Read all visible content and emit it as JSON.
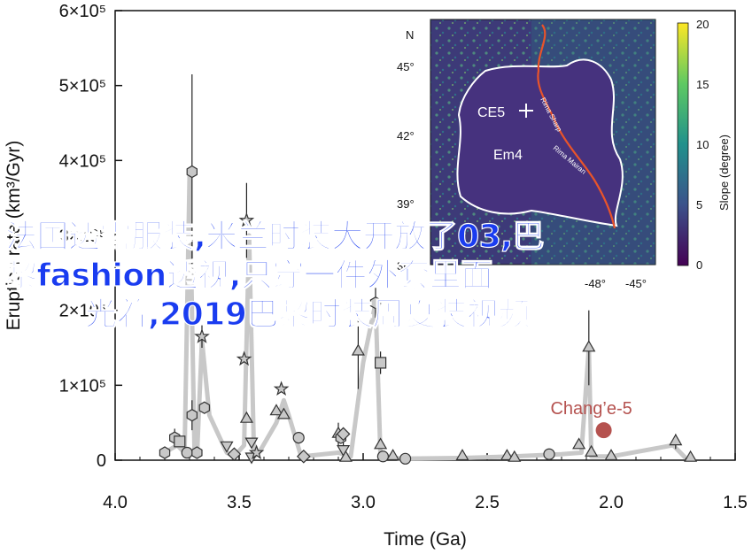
{
  "chart_data": {
    "type": "scatter",
    "xlabel": "Time (Ga)",
    "ylabel": "Eruption rate (km³/Gyr)",
    "xlim": [
      4.0,
      1.5
    ],
    "ylim": [
      0,
      600000
    ],
    "x_ticks": [
      "4.0",
      "3.5",
      "3.0",
      "2.5",
      "2.0",
      "1.5"
    ],
    "y_ticks": [
      "0",
      "1×10⁵",
      "2×10⁵",
      "3×10⁵",
      "4×10⁵",
      "5×10⁵",
      "6×10⁵"
    ],
    "y_tick_values": [
      0,
      100000,
      200000,
      300000,
      400000,
      500000,
      600000
    ],
    "x_tick_values": [
      4.0,
      3.5,
      3.0,
      2.5,
      2.0,
      1.5
    ],
    "line_color": "#c8c8c8",
    "marker_fill": "#c8c8c8",
    "marker_stroke": "#333333",
    "highlight_color": "#b5524f",
    "trend_line": [
      [
        3.8,
        10000
      ],
      [
        3.75,
        20000
      ],
      [
        3.72,
        10000
      ],
      [
        3.7,
        380000
      ],
      [
        3.68,
        10000
      ],
      [
        3.67,
        5000
      ],
      [
        3.65,
        160000
      ],
      [
        3.62,
        60000
      ],
      [
        3.55,
        10000
      ],
      [
        3.52,
        5000
      ],
      [
        3.48,
        20000
      ],
      [
        3.46,
        300000
      ],
      [
        3.44,
        5000
      ],
      [
        3.42,
        10000
      ],
      [
        3.35,
        50000
      ],
      [
        3.32,
        80000
      ],
      [
        3.3,
        60000
      ],
      [
        3.25,
        5000
      ],
      [
        3.1,
        10000
      ],
      [
        3.05,
        5000
      ],
      [
        3.0,
        130000
      ],
      [
        2.95,
        210000
      ],
      [
        2.93,
        5000
      ],
      [
        2.9,
        5000
      ],
      [
        2.85,
        2000
      ],
      [
        2.6,
        3000
      ],
      [
        2.4,
        5000
      ],
      [
        2.2,
        8000
      ],
      [
        2.12,
        10000
      ],
      [
        2.09,
        150000
      ],
      [
        2.08,
        5000
      ],
      [
        2.0,
        5000
      ],
      [
        1.75,
        20000
      ],
      [
        1.7,
        3000
      ]
    ],
    "points": [
      {
        "x": 3.8,
        "y": 10000,
        "marker": "hexagon"
      },
      {
        "x": 3.76,
        "y": 30000,
        "marker": "hexagon",
        "err": 12000
      },
      {
        "x": 3.74,
        "y": 25000,
        "marker": "square"
      },
      {
        "x": 3.71,
        "y": 10000,
        "marker": "circle"
      },
      {
        "x": 3.69,
        "y": 385000,
        "marker": "hexagon",
        "err": 130000
      },
      {
        "x": 3.69,
        "y": 60000,
        "marker": "hexagon",
        "err": 20000
      },
      {
        "x": 3.67,
        "y": 10000,
        "marker": "hexagon"
      },
      {
        "x": 3.65,
        "y": 165000,
        "marker": "star",
        "err": 15000
      },
      {
        "x": 3.64,
        "y": 70000,
        "marker": "hexagon"
      },
      {
        "x": 3.55,
        "y": 20000,
        "marker": "triangle-down"
      },
      {
        "x": 3.52,
        "y": 8000,
        "marker": "diamond"
      },
      {
        "x": 3.48,
        "y": 135000,
        "marker": "star"
      },
      {
        "x": 3.47,
        "y": 320000,
        "marker": "star",
        "err": 50000
      },
      {
        "x": 3.47,
        "y": 55000,
        "marker": "triangle-up"
      },
      {
        "x": 3.45,
        "y": 25000,
        "marker": "triangle-down"
      },
      {
        "x": 3.45,
        "y": 5000,
        "marker": "triangle-down"
      },
      {
        "x": 3.43,
        "y": 10000,
        "marker": "star"
      },
      {
        "x": 3.35,
        "y": 65000,
        "marker": "triangle-up"
      },
      {
        "x": 3.33,
        "y": 95000,
        "marker": "star"
      },
      {
        "x": 3.32,
        "y": 60000,
        "marker": "triangle-up"
      },
      {
        "x": 3.26,
        "y": 30000,
        "marker": "circle"
      },
      {
        "x": 3.24,
        "y": 5000,
        "marker": "diamond"
      },
      {
        "x": 3.1,
        "y": 35000,
        "marker": "triangle-up",
        "err": 15000
      },
      {
        "x": 3.09,
        "y": 30000,
        "marker": "hexagon"
      },
      {
        "x": 3.08,
        "y": 35000,
        "marker": "diamond"
      },
      {
        "x": 3.08,
        "y": 15000,
        "marker": "triangle-down",
        "err": 12000
      },
      {
        "x": 3.07,
        "y": 3000,
        "marker": "triangle-up"
      },
      {
        "x": 3.02,
        "y": 145000,
        "marker": "triangle-up",
        "err": 50000
      },
      {
        "x": 2.95,
        "y": 210000,
        "marker": "hexagon",
        "err": 20000
      },
      {
        "x": 2.93,
        "y": 130000,
        "marker": "square",
        "err": 15000
      },
      {
        "x": 2.93,
        "y": 20000,
        "marker": "triangle-up"
      },
      {
        "x": 2.92,
        "y": 5000,
        "marker": "circle"
      },
      {
        "x": 2.88,
        "y": 5000,
        "marker": "triangle-up"
      },
      {
        "x": 2.83,
        "y": 2000,
        "marker": "circle"
      },
      {
        "x": 2.6,
        "y": 5000,
        "marker": "triangle-up"
      },
      {
        "x": 2.42,
        "y": 5000,
        "marker": "triangle-up"
      },
      {
        "x": 2.39,
        "y": 3000,
        "marker": "triangle-up"
      },
      {
        "x": 2.25,
        "y": 8000,
        "marker": "circle"
      },
      {
        "x": 2.13,
        "y": 20000,
        "marker": "triangle-up"
      },
      {
        "x": 2.09,
        "y": 150000,
        "marker": "triangle-up",
        "err": 50000
      },
      {
        "x": 2.08,
        "y": 10000,
        "marker": "triangle-up"
      },
      {
        "x": 2.0,
        "y": 5000,
        "marker": "triangle-up"
      },
      {
        "x": 1.74,
        "y": 25000,
        "marker": "triangle-up",
        "err": 10000
      },
      {
        "x": 1.68,
        "y": 3000,
        "marker": "triangle-up"
      }
    ],
    "highlight": {
      "label": "Chang’e-5",
      "x": 2.03,
      "y": 40000
    }
  },
  "inset": {
    "lat_ticks": [
      "45°",
      "42°",
      "39°",
      "36°"
    ],
    "lon_ticks": [
      "-48°",
      "-45°"
    ],
    "north_label": "N",
    "colorbar_title": "Slope (degree)",
    "colorbar_ticks": [
      "20",
      "15",
      "10",
      "5",
      "0"
    ],
    "labels": {
      "ce5": "CE5",
      "em4": "Em4",
      "rima_sharp": "Rima Sharp",
      "rima_mairan": "Rima Mairan"
    }
  },
  "overlay_text": {
    "line1": "法国透露服装,米兰时装大开放了03,巴",
    "line2": "黎fashion透视,只穿一件外套里面",
    "line3": "光着,2019巴黎时装周夏装视频"
  }
}
